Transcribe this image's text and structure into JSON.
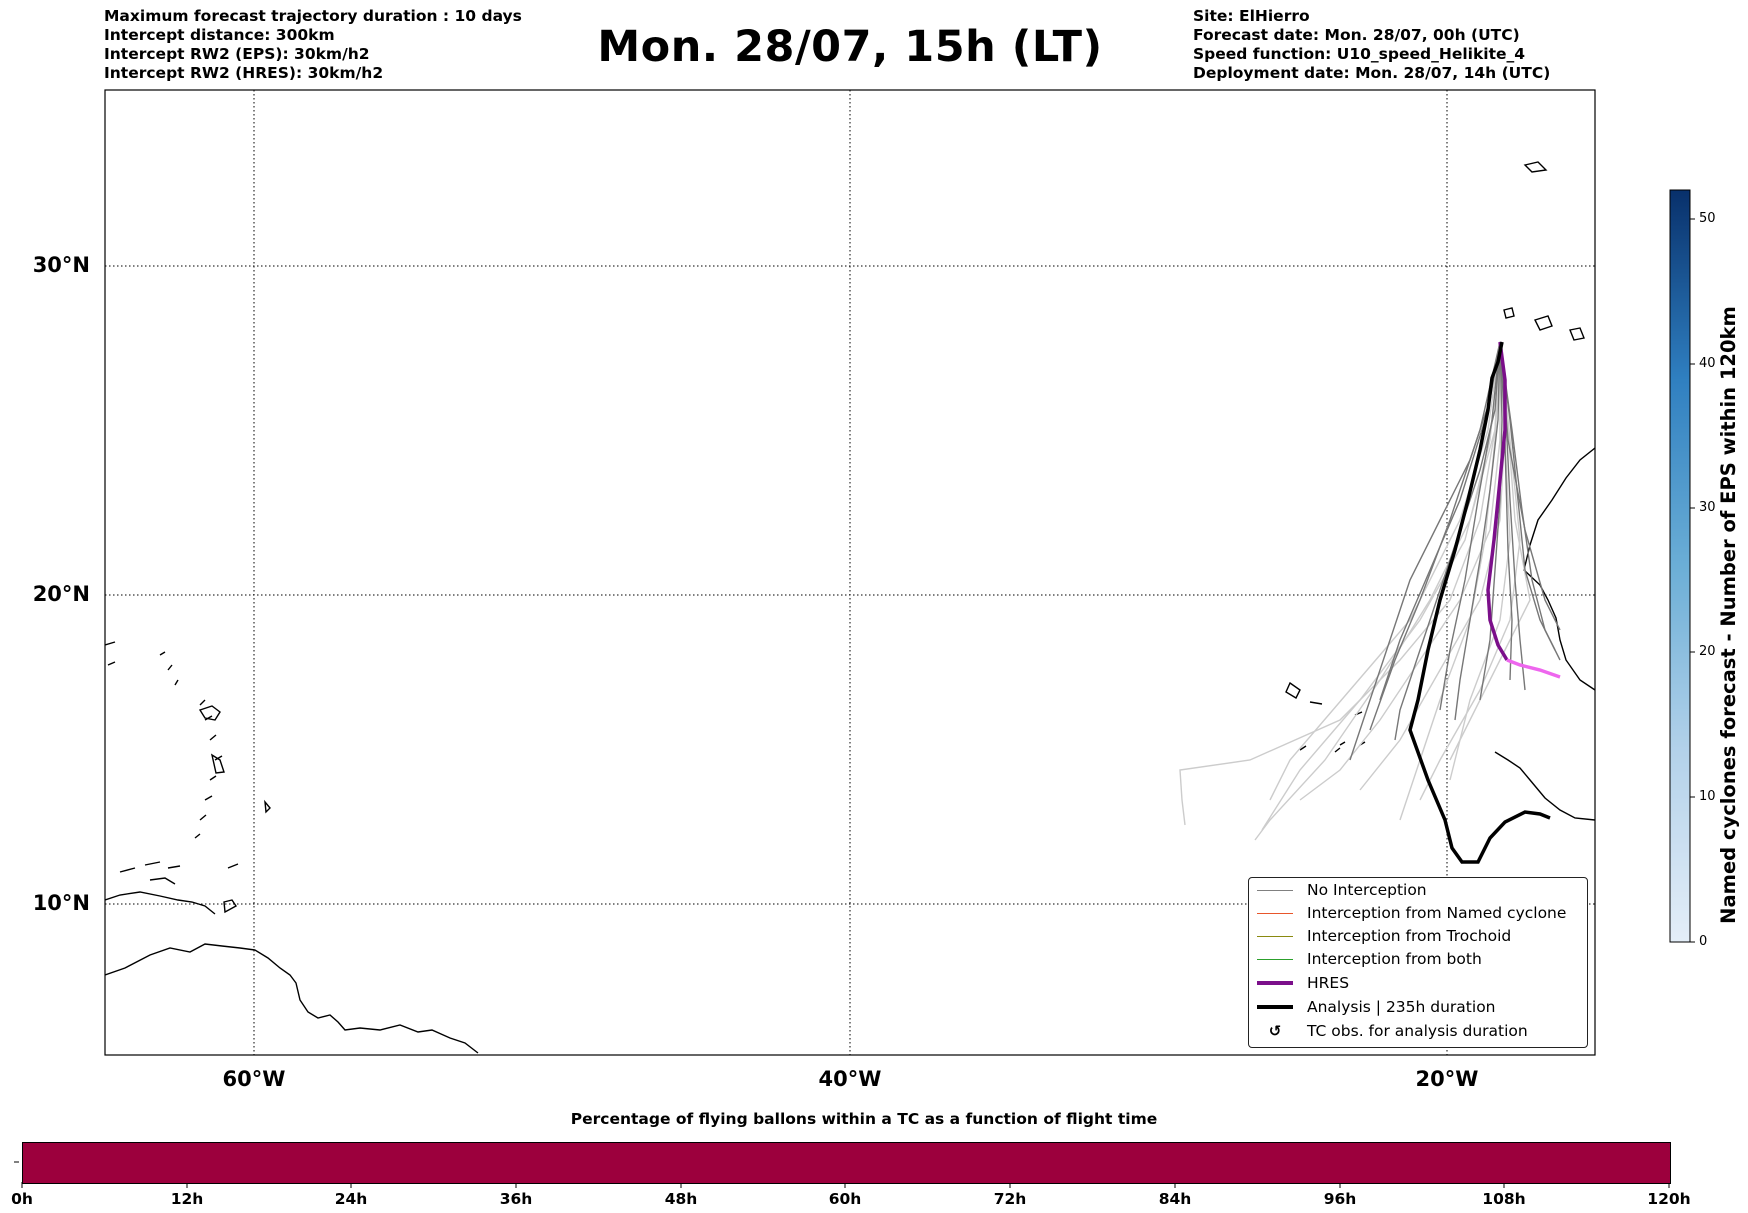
{
  "header": {
    "left_lines": [
      "Maximum forecast trajectory duration : 10 days",
      "Intercept distance: 300km",
      "Intercept RW2 (EPS):  30km/h2",
      "Intercept RW2 (HRES): 30km/h2"
    ],
    "title": "Mon. 28/07, 15h (LT)",
    "right_lines": [
      "Site: ElHierro",
      "Forecast date: Mon. 28/07, 00h (UTC)",
      "Speed function: U10_speed_Helikite_4",
      "Deployment date: Mon. 28/07, 14h (UTC)"
    ]
  },
  "map": {
    "lat_labels": [
      "30°N",
      "20°N",
      "10°N"
    ],
    "lon_labels": [
      "60°W",
      "40°W",
      "20°W"
    ],
    "extent": {
      "lon_min": -65,
      "lon_max": -15,
      "lat_min": 5.3,
      "lat_max": 34.6
    },
    "colors": {
      "eps": "#888888",
      "eps_light": "#cccccc",
      "hres": "#7b0f8a",
      "hres_late": "#ee66ee",
      "analysis": "#000000"
    }
  },
  "legend": {
    "items": [
      {
        "label": "No Interception",
        "color": "#808080",
        "style": "thin"
      },
      {
        "label": "Interception from Named cyclone",
        "color": "#e8562b",
        "style": "thin"
      },
      {
        "label": "Interception from Trochoid",
        "color": "#8a8a10",
        "style": "thin"
      },
      {
        "label": "Interception from both",
        "color": "#2ca02c",
        "style": "thin"
      },
      {
        "label": "HRES",
        "color": "#7b0f8a",
        "style": "thick"
      },
      {
        "label": "Analysis | 235h duration",
        "color": "#000000",
        "style": "thick"
      },
      {
        "label": "TC obs. for analysis duration",
        "color": "#000000",
        "style": "symbol",
        "symbol": "↺"
      }
    ]
  },
  "colorbar": {
    "label": "Named cyclones forecast - Number of EPS within 120km",
    "ticks": [
      "0",
      "10",
      "20",
      "30",
      "40",
      "50"
    ],
    "range": [
      0,
      52
    ],
    "color_low": "#e4eef8",
    "color_high": "#08306b"
  },
  "progress": {
    "title": "Percentage of flying ballons within a TC as a function of flight time",
    "ticks": [
      "0h",
      "12h",
      "24h",
      "36h",
      "48h",
      "60h",
      "72h",
      "84h",
      "96h",
      "108h",
      "120h"
    ],
    "fill_color": "#9c003d"
  }
}
